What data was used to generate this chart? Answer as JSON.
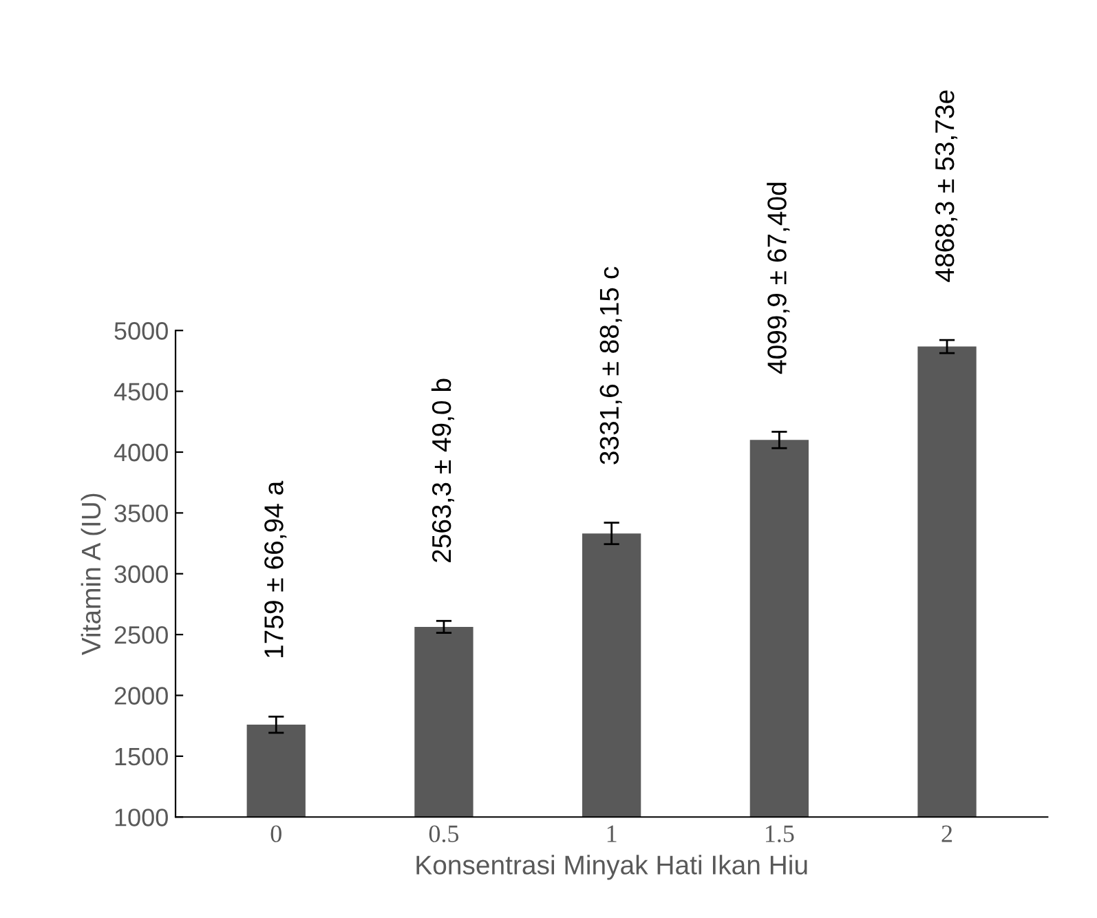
{
  "chart_data": {
    "type": "bar",
    "xlabel": "Konsentrasi Minyak Hati Ikan Hiu",
    "ylabel": "Vitamin A (IU)",
    "categories": [
      "0",
      "0.5",
      "1",
      "1.5",
      "2"
    ],
    "values": [
      1759,
      2563.3,
      3331.6,
      4099.9,
      4868.3
    ],
    "errors": [
      66.94,
      49.0,
      88.15,
      67.4,
      53.73
    ],
    "value_labels": [
      "1759 ± 66,94 a",
      "2563,3 ± 49,0 b",
      "3331,6 ± 88,15 c",
      "4099,9 ± 67,40d",
      "4868,3 ± 53,73e"
    ],
    "color": "#595959",
    "ylim": [
      1000,
      5000
    ],
    "yticks": [
      1000,
      1500,
      2000,
      2500,
      3000,
      3500,
      4000,
      4500,
      5000
    ],
    "grid": false,
    "legend": false
  }
}
